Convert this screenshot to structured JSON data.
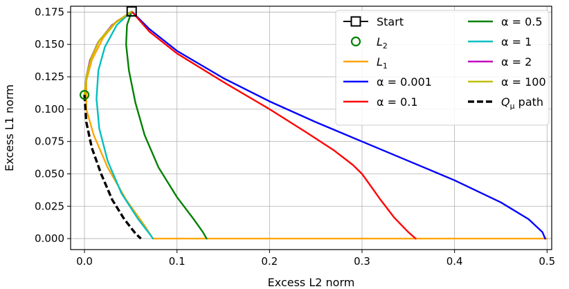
{
  "chart_data": {
    "type": "line",
    "title": "",
    "xlabel": "Excess L2 norm",
    "ylabel": "Excess L1 norm",
    "xlim": [
      -0.015,
      0.505
    ],
    "ylim": [
      -0.0085,
      0.1795
    ],
    "xticks": [
      0.0,
      0.1,
      0.2,
      0.3,
      0.4,
      0.5
    ],
    "xtick_labels": [
      "0.0",
      "0.1",
      "0.2",
      "0.3",
      "0.4",
      "0.5"
    ],
    "yticks": [
      0.0,
      0.025,
      0.05,
      0.075,
      0.1,
      0.125,
      0.15,
      0.175
    ],
    "ytick_labels": [
      "0.000",
      "0.025",
      "0.050",
      "0.075",
      "0.100",
      "0.125",
      "0.150",
      "0.175"
    ],
    "grid": true,
    "legend_position": "top-right",
    "markers": [
      {
        "name": "Start",
        "label": "Start",
        "color": "#000000",
        "shape": "square",
        "x": 0.051,
        "y": 0.1755
      },
      {
        "name": "L2",
        "label": "L",
        "sub": "2",
        "color": "#008000",
        "shape": "circle",
        "x": 0.0,
        "y": 0.111
      }
    ],
    "series": [
      {
        "name": "L1",
        "label": "L",
        "sub": "1",
        "color": "#ffa500",
        "dash": false,
        "x": [
          0.051,
          0.035,
          0.02,
          0.008,
          0.002,
          0.002,
          0.01,
          0.025,
          0.045,
          0.065,
          0.074,
          0.2,
          0.35,
          0.5
        ],
        "y": [
          0.175,
          0.168,
          0.155,
          0.138,
          0.122,
          0.1,
          0.08,
          0.055,
          0.03,
          0.01,
          0.0,
          0.0,
          0.0,
          0.0
        ]
      },
      {
        "name": "alpha=0.001",
        "label": "α = 0.001",
        "color": "#0000ff",
        "dash": false,
        "x": [
          0.051,
          0.07,
          0.1,
          0.15,
          0.2,
          0.25,
          0.3,
          0.35,
          0.4,
          0.45,
          0.48,
          0.495,
          0.498
        ],
        "y": [
          0.1755,
          0.162,
          0.145,
          0.124,
          0.106,
          0.09,
          0.075,
          0.06,
          0.045,
          0.028,
          0.015,
          0.005,
          0.0
        ]
      },
      {
        "name": "alpha=0.1",
        "label": "α = 0.1",
        "color": "#ff0000",
        "dash": false,
        "x": [
          0.051,
          0.07,
          0.1,
          0.15,
          0.2,
          0.24,
          0.27,
          0.29,
          0.3,
          0.31,
          0.32,
          0.335,
          0.35,
          0.358
        ],
        "y": [
          0.1755,
          0.16,
          0.143,
          0.121,
          0.1,
          0.082,
          0.068,
          0.057,
          0.05,
          0.04,
          0.03,
          0.016,
          0.005,
          0.0
        ]
      },
      {
        "name": "alpha=0.5",
        "label": "α = 0.5",
        "color": "#008000",
        "dash": false,
        "x": [
          0.051,
          0.046,
          0.045,
          0.048,
          0.055,
          0.065,
          0.08,
          0.1,
          0.118,
          0.128,
          0.132
        ],
        "y": [
          0.1755,
          0.165,
          0.15,
          0.13,
          0.105,
          0.08,
          0.055,
          0.032,
          0.015,
          0.005,
          0.0
        ]
      },
      {
        "name": "alpha=1",
        "label": "α = 1",
        "color": "#00bfbf",
        "dash": false,
        "x": [
          0.051,
          0.035,
          0.022,
          0.015,
          0.013,
          0.016,
          0.025,
          0.04,
          0.058,
          0.07,
          0.074
        ],
        "y": [
          0.1755,
          0.165,
          0.148,
          0.13,
          0.108,
          0.085,
          0.06,
          0.035,
          0.015,
          0.004,
          0.0
        ]
      },
      {
        "name": "alpha=2",
        "label": "α = 2",
        "color": "#bf00bf",
        "dash": false,
        "x": [
          0.051,
          0.03,
          0.015,
          0.006,
          0.002,
          0.0
        ],
        "y": [
          0.1755,
          0.165,
          0.152,
          0.138,
          0.125,
          0.111
        ]
      },
      {
        "name": "alpha=100",
        "label": "α = 100",
        "color": "#bfbf00",
        "dash": false,
        "x": [
          0.051,
          0.032,
          0.016,
          0.007,
          0.002,
          0.0
        ],
        "y": [
          0.1755,
          0.166,
          0.153,
          0.139,
          0.125,
          0.111
        ]
      },
      {
        "name": "Q_mu path",
        "label": "Q",
        "sub": "μ",
        "suffix": " path",
        "color": "#000000",
        "dash": true,
        "x": [
          0.0,
          0.002,
          0.008,
          0.018,
          0.03,
          0.043,
          0.055,
          0.061
        ],
        "y": [
          0.111,
          0.09,
          0.07,
          0.05,
          0.03,
          0.015,
          0.004,
          0.0
        ]
      }
    ],
    "legend_order": [
      [
        "Start",
        "alpha=0.5"
      ],
      [
        "L2",
        "alpha=1"
      ],
      [
        "L1",
        "alpha=2"
      ],
      [
        "alpha=0.001",
        "alpha=100"
      ],
      [
        "alpha=0.1",
        "Q_mu path"
      ]
    ]
  }
}
